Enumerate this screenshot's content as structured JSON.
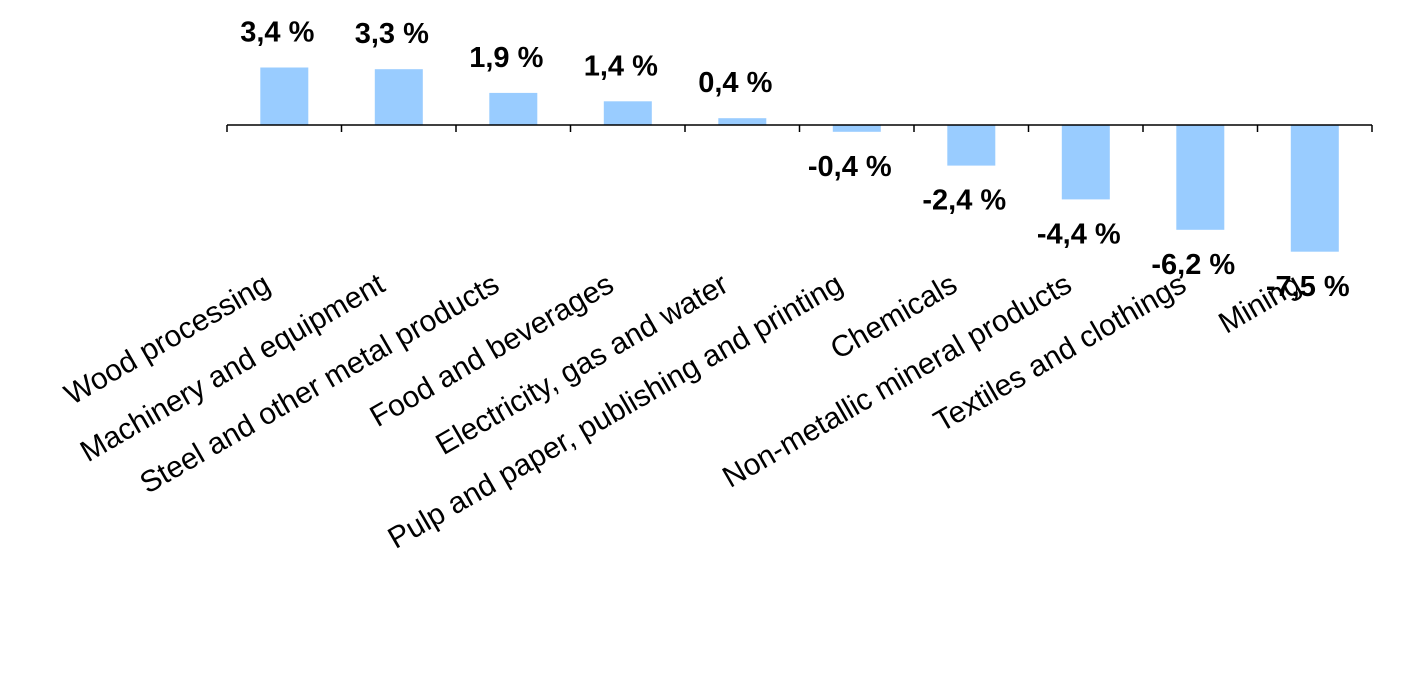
{
  "chart_data": {
    "type": "bar",
    "title": "",
    "xlabel": "",
    "ylabel": "",
    "categories": [
      "Wood processing",
      "Machinery and equipment",
      "Steel and other metal products",
      "Food and beverages",
      "Electricity, gas and water",
      "Pulp and paper, publishing and printing",
      "Chemicals",
      "Non-metallic mineral products",
      "Textiles and clothings",
      "Mining"
    ],
    "values": [
      3.4,
      3.3,
      1.9,
      1.4,
      0.4,
      -0.4,
      -2.4,
      -4.4,
      -6.2,
      -7.5
    ],
    "value_labels": [
      "3,4 %",
      "3,3 %",
      "1,9 %",
      "1,4 %",
      "0,4 %",
      "-0,4 %",
      "-2,4 %",
      "-4,4 %",
      "-6,2 %",
      "-7,5 %"
    ],
    "bar_color": "#99ccff",
    "axis_color": "#000000",
    "grid": false,
    "legend": "none"
  }
}
